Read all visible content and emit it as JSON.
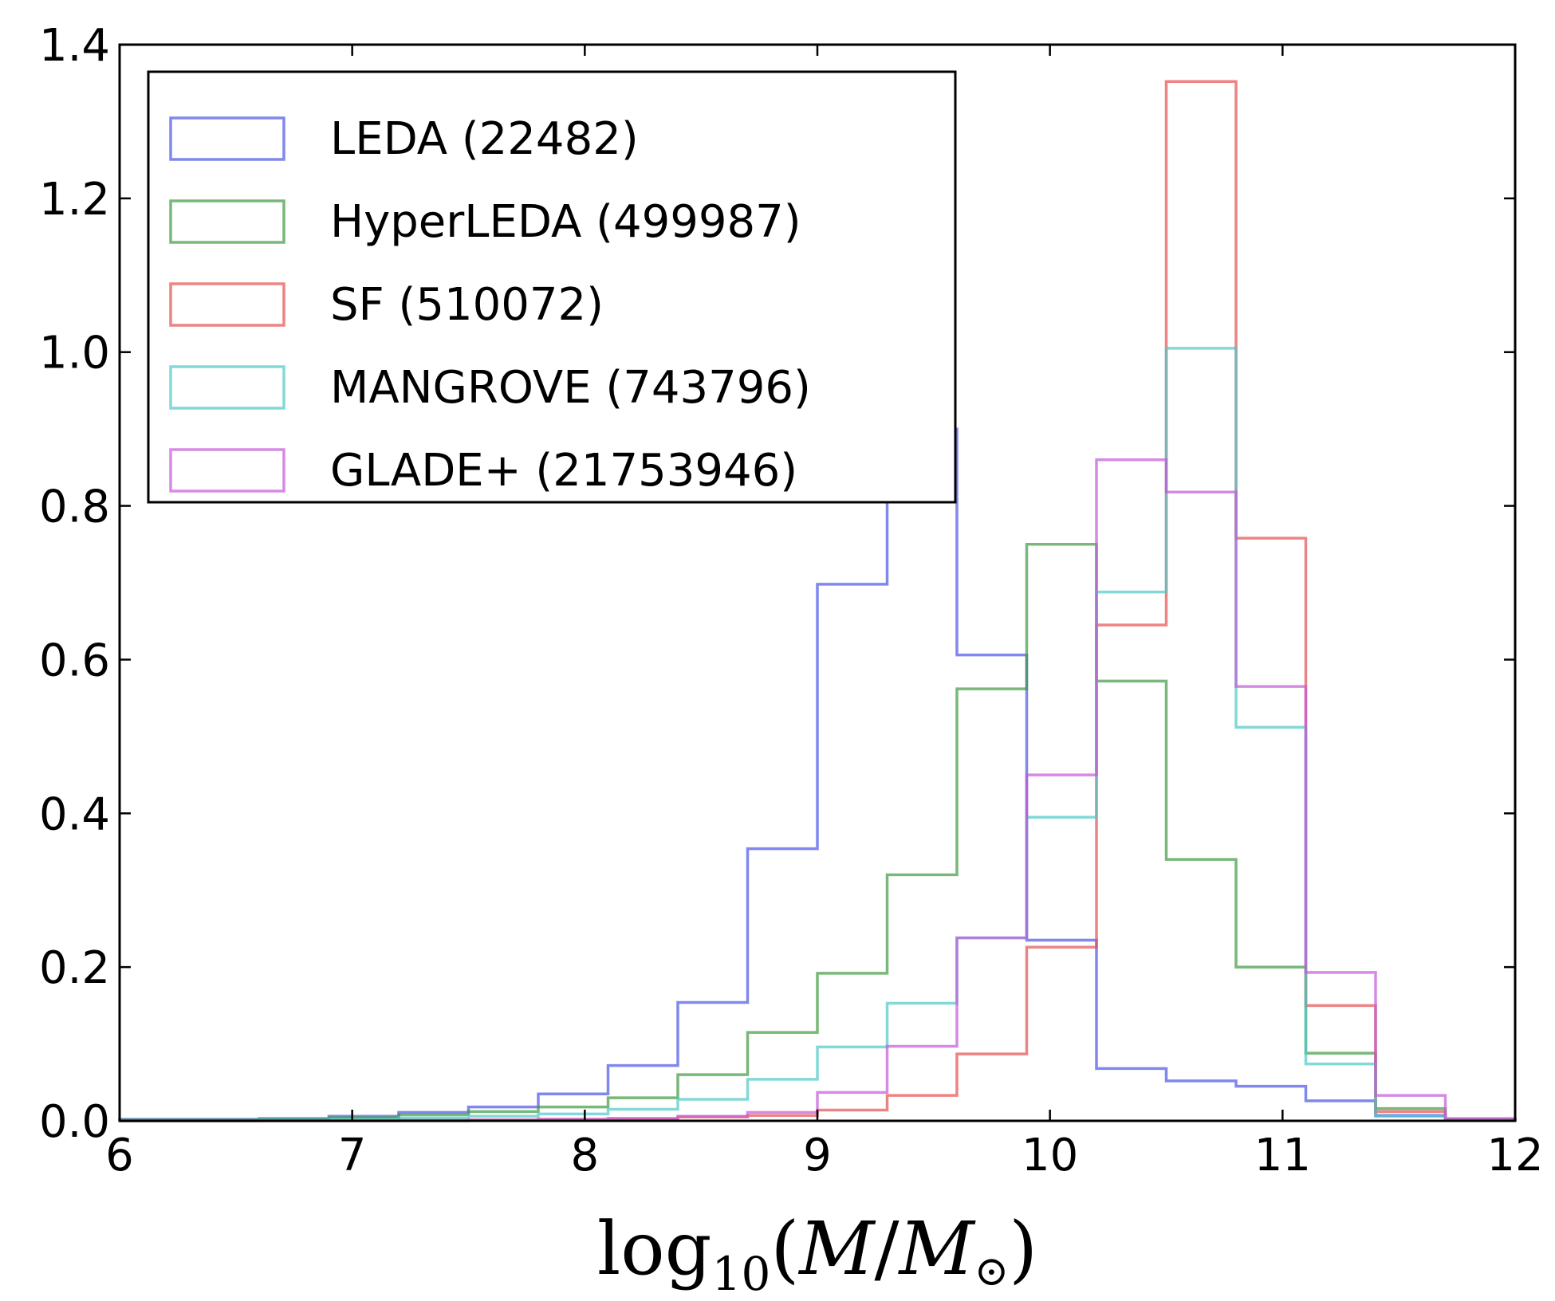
{
  "chart_data": {
    "type": "step-histogram",
    "title": "",
    "xlabel": {
      "prefix": "log",
      "subscript": "10",
      "open": "(",
      "var": "M",
      "slash": "/",
      "var2": "M",
      "sun": "⊙",
      "close": ")"
    },
    "ylabel": "",
    "xlim": [
      6,
      12
    ],
    "ylim": [
      0,
      1.4
    ],
    "xticks": [
      6,
      7,
      8,
      9,
      10,
      11,
      12
    ],
    "xtick_labels": [
      "6",
      "7",
      "8",
      "9",
      "10",
      "11",
      "12"
    ],
    "yticks": [
      0,
      0.2,
      0.4,
      0.6,
      0.8,
      1.0,
      1.2,
      1.4
    ],
    "ytick_labels": [
      "0.0",
      "0.2",
      "0.4",
      "0.6",
      "0.8",
      "1.0",
      "1.2",
      "1.4"
    ],
    "bin_edges": [
      6.0,
      6.3,
      6.6,
      6.9,
      7.2,
      7.5,
      7.8,
      8.1,
      8.4,
      8.7,
      9.0,
      9.3,
      9.6,
      9.9,
      10.2,
      10.5,
      10.8,
      11.1,
      11.4,
      11.7,
      12.0
    ],
    "legend_position": "upper-left",
    "grid": false,
    "series": [
      {
        "name": "LEDA (22482)",
        "color": "#4b55e6",
        "values": [
          0.002,
          0.002,
          0.003,
          0.006,
          0.011,
          0.018,
          0.035,
          0.072,
          0.154,
          0.354,
          0.698,
          0.9,
          0.606,
          0.235,
          0.068,
          0.052,
          0.045,
          0.026,
          0.007,
          0.002
        ]
      },
      {
        "name": "HyperLEDA (499987)",
        "color": "#3f9a3f",
        "values": [
          0.001,
          0.001,
          0.002,
          0.004,
          0.008,
          0.012,
          0.018,
          0.03,
          0.06,
          0.115,
          0.192,
          0.32,
          0.562,
          0.75,
          0.572,
          0.34,
          0.2,
          0.088,
          0.016,
          0.002
        ]
      },
      {
        "name": "SF (510072)",
        "color": "#e65050",
        "values": [
          0.0,
          0.0,
          0.0,
          0.0,
          0.001,
          0.001,
          0.002,
          0.003,
          0.005,
          0.007,
          0.014,
          0.033,
          0.087,
          0.226,
          0.645,
          1.352,
          0.758,
          0.15,
          0.012,
          0.002
        ]
      },
      {
        "name": "MANGROVE (743796)",
        "color": "#4ec8c8",
        "values": [
          0.0,
          0.0,
          0.001,
          0.002,
          0.004,
          0.006,
          0.009,
          0.015,
          0.028,
          0.054,
          0.096,
          0.153,
          0.238,
          0.395,
          0.688,
          1.005,
          0.512,
          0.074,
          0.006,
          0.001
        ]
      },
      {
        "name": "GLADE+ (21753946)",
        "color": "#c35ad8",
        "values": [
          0.0,
          0.0,
          0.0,
          0.0,
          0.0,
          0.001,
          0.002,
          0.003,
          0.006,
          0.011,
          0.037,
          0.097,
          0.238,
          0.45,
          0.86,
          0.818,
          0.565,
          0.193,
          0.033,
          0.003
        ]
      }
    ]
  }
}
